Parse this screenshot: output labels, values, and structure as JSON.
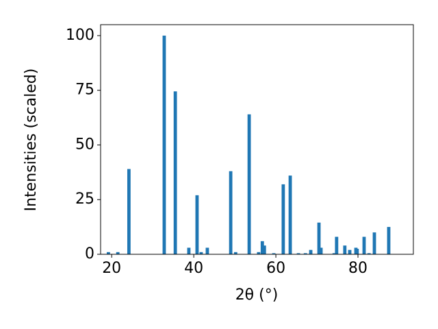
{
  "chart_data": {
    "type": "bar",
    "x": [
      19.2,
      21.5,
      24.2,
      32.8,
      35.5,
      38.8,
      40.8,
      41.8,
      43.3,
      49.0,
      50.2,
      53.5,
      55.8,
      56.7,
      57.2,
      59.5,
      61.8,
      63.5,
      65.5,
      67.2,
      68.5,
      70.5,
      71.0,
      74.2,
      74.8,
      76.8,
      78.0,
      79.5,
      79.8,
      81.5,
      82.7,
      84.0,
      87.5
    ],
    "values": [
      1,
      1,
      39,
      100,
      74.5,
      3,
      27,
      1,
      3,
      38,
      1,
      64,
      1,
      6,
      4,
      0.5,
      32,
      36,
      0.5,
      0.5,
      2,
      14.5,
      3,
      0.5,
      8,
      4,
      2,
      3,
      2.5,
      8,
      0.5,
      10,
      12.5
    ],
    "color": "#1f77b4",
    "xlabel": "2θ (°)",
    "ylabel": "Intensities (scaled)",
    "xlim": [
      17.3,
      93.5
    ],
    "xticks": [
      20,
      40,
      60,
      80
    ],
    "ylim": [
      0,
      105
    ],
    "yticks": [
      0,
      25,
      50,
      75,
      100
    ]
  }
}
